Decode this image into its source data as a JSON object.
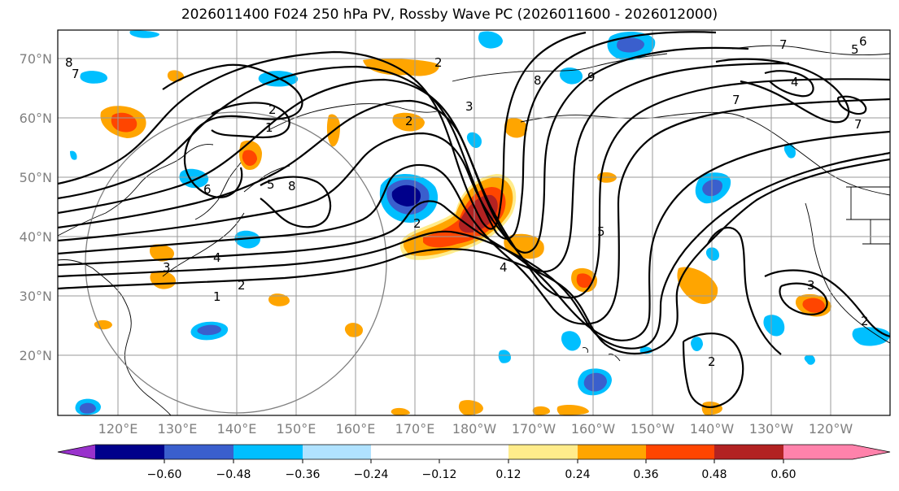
{
  "title": "2026011400 F024 250 hPa PV, Rossby Wave PC (2026011600 - 2026012000)",
  "lat_labels": [
    "70°N",
    "60°N",
    "50°N",
    "40°N",
    "30°N",
    "20°N"
  ],
  "lon_labels": [
    "120°E",
    "130°E",
    "140°E",
    "150°E",
    "160°E",
    "170°E",
    "180°W",
    "170°W",
    "160°W",
    "150°W",
    "140°W",
    "130°W",
    "120°W"
  ],
  "colorbar": {
    "colors": [
      "#9932cc",
      "#00008b",
      "#3a5fcd",
      "#00bfff",
      "#b0e2ff",
      "#ffffff",
      "#ffec8b",
      "#ffa500",
      "#ff4500",
      "#b22222",
      "#ff82ab"
    ],
    "tick_labels": [
      "−0.60",
      "−0.48",
      "−0.36",
      "−0.24",
      "−0.12",
      "0.12",
      "0.24",
      "0.36",
      "0.48",
      "0.60"
    ]
  },
  "contour_labels": [
    "8",
    "7",
    "6",
    "5",
    "4",
    "3",
    "2",
    "1",
    "2",
    "1",
    "2",
    "8",
    "7",
    "9",
    "8",
    "6",
    "7",
    "4",
    "7",
    "5",
    "3",
    "2",
    "2",
    "2",
    "5",
    "4",
    "3",
    "2"
  ],
  "colors": {
    "negative_weak": "#00bfff",
    "negative_strong": "#3a5fcd",
    "negative_core": "#00008b",
    "positive_weak": "#ffa500",
    "positive_strong": "#ff4500",
    "positive_core": "#b22222",
    "edge_yellow": "#ffec8b",
    "edge_lightblue": "#b0e2ff"
  }
}
